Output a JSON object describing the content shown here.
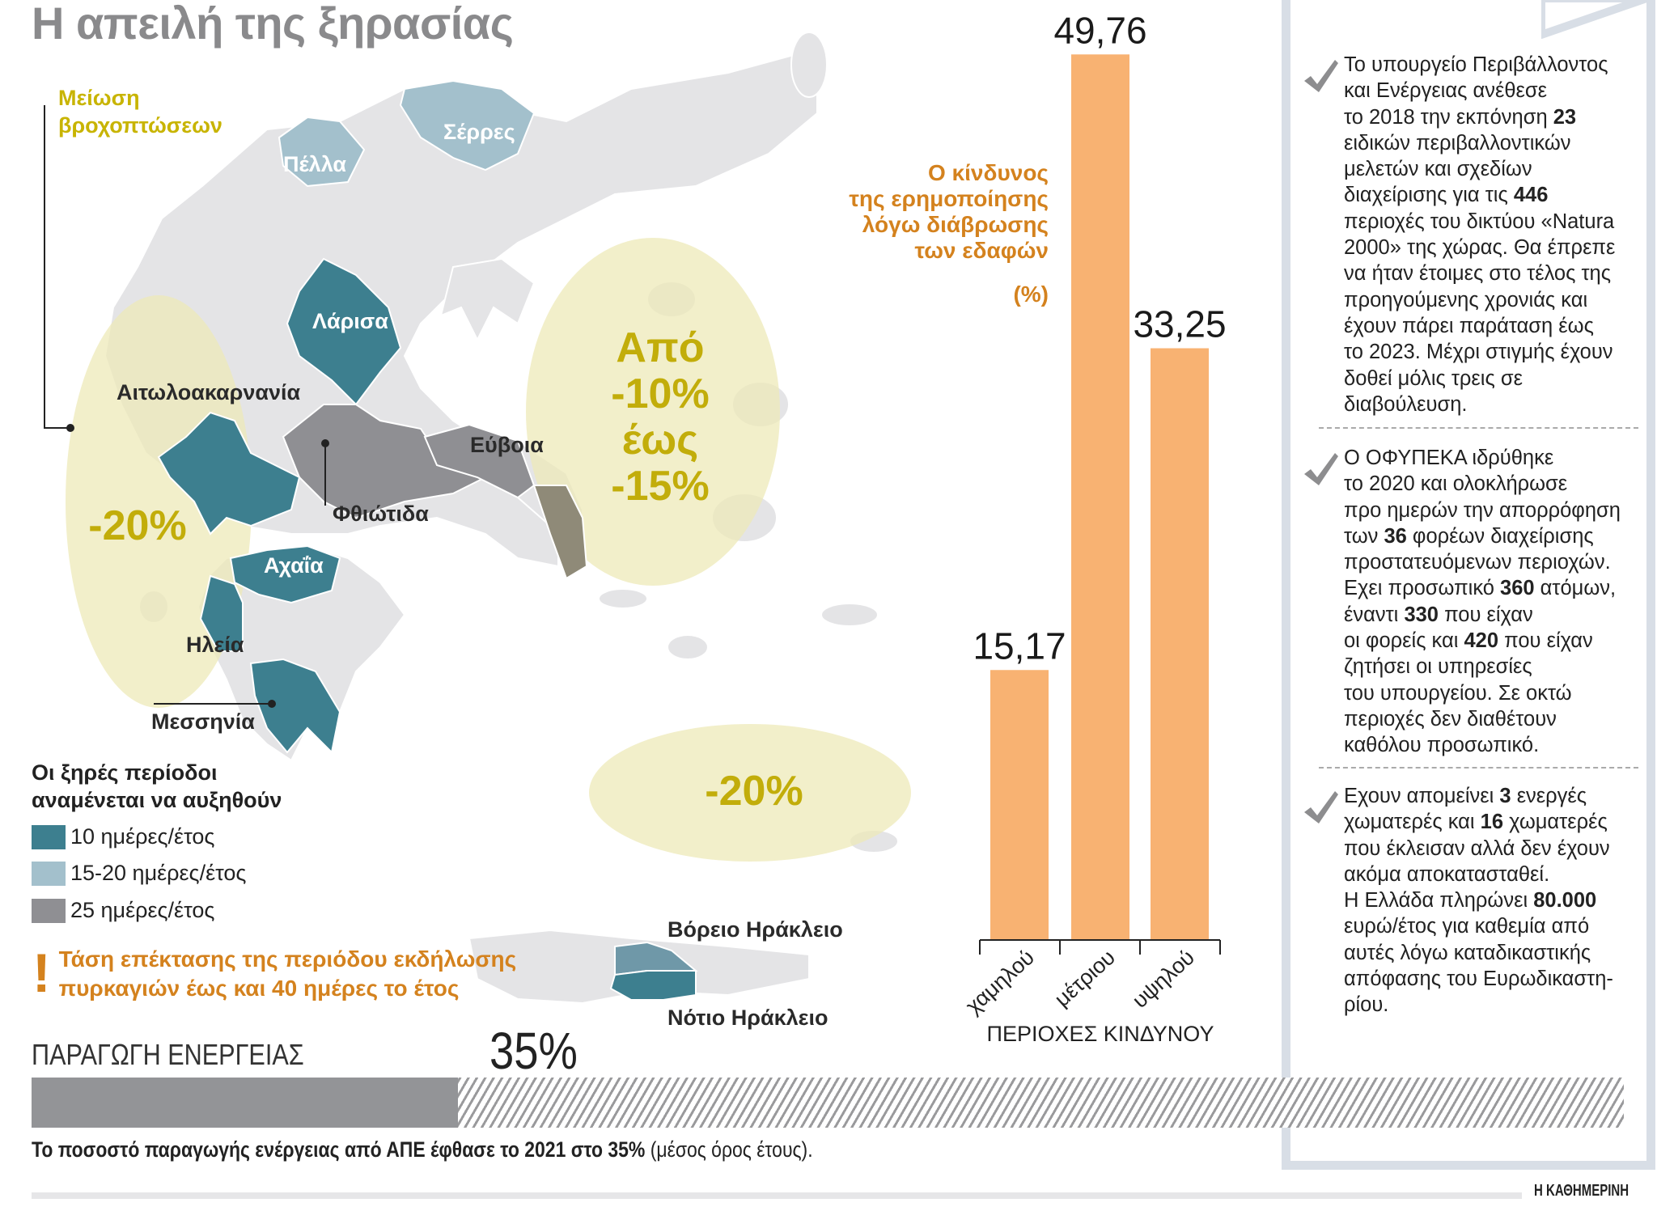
{
  "title": "Η απειλή της ξηρασίας",
  "map": {
    "rain_label": [
      "Μείωση",
      "βροχοπτώσεων"
    ],
    "zones": [
      {
        "label": [
          "-20%"
        ]
      },
      {
        "label": [
          "Από",
          "-10%",
          "έως",
          "-15%"
        ]
      },
      {
        "label": [
          "-20%"
        ]
      }
    ],
    "regions": {
      "serres": "Σέρρες",
      "pella": "Πέλλα",
      "larisa": "Λάρισα",
      "aitoloakarnania": "Αιτωλοακαρνανία",
      "evia": "Εύβοια",
      "fthiotida": "Φθιώτιδα",
      "achaia": "Αχαΐα",
      "ileia": "Ηλεία",
      "messinia": "Μεσσηνία",
      "north_heraklion": "Βόρειο Ηράκλειο",
      "south_heraklion": "Νότιο Ηράκλειο"
    },
    "legend": {
      "title": [
        "Οι ξηρές περίοδοι",
        "αναμένεται να αυξηθούν"
      ],
      "items": [
        {
          "label": "10 ημέρες/έτος",
          "color": "#3d7f8f"
        },
        {
          "label": "15-20 ημέρες/έτος",
          "color": "#a3c0cc"
        },
        {
          "label": "25 ημέρες/έτος",
          "color": "#8f8f93"
        }
      ]
    },
    "fire_warning": {
      "icon": "exclamation-icon",
      "mark": "!",
      "lines": [
        "Τάση επέκτασης της περιόδου εκδήλωσης",
        "πυρκαγιών έως και 40 ημέρες το έτος"
      ]
    }
  },
  "chart_data": {
    "type": "bar",
    "title": [
      "Ο κίνδυνος",
      "της ερημοποίησης",
      "λόγω διάβρωσης",
      "των εδαφών"
    ],
    "unit": "(%)",
    "categories": [
      "χαμηλού",
      "μέτριου",
      "υψηλού"
    ],
    "values": [
      15.17,
      49.76,
      33.25
    ],
    "value_labels": [
      "15,17",
      "49,76",
      "33,25"
    ],
    "xlabel": "ΠΕΡΙΟΧΕΣ ΚΙΝΔΥΝΟΥ",
    "color": "#f8b272"
  },
  "panel": {
    "paragraphs": [
      [
        [
          {
            "t": "Το υπουργείο Περιβάλλοντος"
          }
        ],
        [
          {
            "t": "και Ενέργειας ανέθεσε"
          }
        ],
        [
          {
            "t": "το 2018 την εκπόνηση "
          },
          {
            "t": "23",
            "b": true
          }
        ],
        [
          {
            "t": "ειδικών περιβαλλοντικών"
          }
        ],
        [
          {
            "t": "μελετών και σχεδίων"
          }
        ],
        [
          {
            "t": "διαχείρισης για τις "
          },
          {
            "t": "446",
            "b": true
          }
        ],
        [
          {
            "t": "περιοχές του δικτύου «Natura"
          }
        ],
        [
          {
            "t": "2000» της χώρας. Θα έπρεπε"
          }
        ],
        [
          {
            "t": "να ήταν έτοιμες στο τέλος της"
          }
        ],
        [
          {
            "t": "προηγούμενης χρονιάς και"
          }
        ],
        [
          {
            "t": "έχουν πάρει παράταση έως"
          }
        ],
        [
          {
            "t": "το 2023. Μέχρι στιγμής έχουν"
          }
        ],
        [
          {
            "t": "δοθεί μόλις τρεις σε"
          }
        ],
        [
          {
            "t": "διαβούλευση."
          }
        ]
      ],
      [
        [
          {
            "t": "Ο ΟΦΥΠΕΚΑ ιδρύθηκε"
          }
        ],
        [
          {
            "t": "το 2020 και ολοκλήρωσε"
          }
        ],
        [
          {
            "t": "προ ημερών την απορρόφηση"
          }
        ],
        [
          {
            "t": "των "
          },
          {
            "t": "36",
            "b": true
          },
          {
            "t": " φορέων διαχείρισης"
          }
        ],
        [
          {
            "t": "προστατευόμενων περιοχών."
          }
        ],
        [
          {
            "t": "Εχει προσωπικό "
          },
          {
            "t": "360",
            "b": true
          },
          {
            "t": " ατόμων,"
          }
        ],
        [
          {
            "t": "έναντι "
          },
          {
            "t": "330",
            "b": true
          },
          {
            "t": " που είχαν"
          }
        ],
        [
          {
            "t": "οι φορείς και "
          },
          {
            "t": "420",
            "b": true
          },
          {
            "t": " που είχαν"
          }
        ],
        [
          {
            "t": "ζητήσει οι υπηρεσίες"
          }
        ],
        [
          {
            "t": "του υπουργείου. Σε οκτώ"
          }
        ],
        [
          {
            "t": "περιοχές δεν διαθέτουν"
          }
        ],
        [
          {
            "t": "καθόλου προσωπικό."
          }
        ]
      ],
      [
        [
          {
            "t": "Εχουν απομείνει "
          },
          {
            "t": "3",
            "b": true
          },
          {
            "t": " ενεργές"
          }
        ],
        [
          {
            "t": "χωματερές και "
          },
          {
            "t": "16",
            "b": true
          },
          {
            "t": " χωματερές"
          }
        ],
        [
          {
            "t": "που έκλεισαν αλλά δεν έχουν"
          }
        ],
        [
          {
            "t": "ακόμα αποκατασταθεί."
          }
        ],
        [
          {
            "t": "Η Ελλάδα πληρώνει "
          },
          {
            "t": "80.000",
            "b": true
          }
        ],
        [
          {
            "t": "ευρώ/έτος για καθεμία από"
          }
        ],
        [
          {
            "t": "αυτές λόγω καταδικαστικής"
          }
        ],
        [
          {
            "t": "απόφασης του Ευρωδικαστη-"
          }
        ],
        [
          {
            "t": "ρίου."
          }
        ]
      ]
    ]
  },
  "energy": {
    "label": "ΠΑΡΑΓΩΓΗ ΕΝΕΡΓΕΙΑΣ",
    "value_label": "35%",
    "percent": 35,
    "caption_bold": "Το ποσοστό παραγωγής ενέργειας από ΑΠΕ έφθασε το 2021 στο 35%",
    "caption_rest": " (μέσος όρος έτους)."
  },
  "brand": "Η ΚΑΘΗΜΕΡΙΝΗ"
}
